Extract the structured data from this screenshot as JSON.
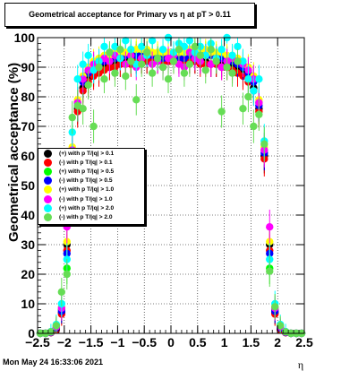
{
  "canvas": {
    "title": "Geometrical acceptance for Primary vs   η at pT > 0.11",
    "timestamp": "Mon May 24 16:33:06 2021"
  },
  "chart_data": {
    "type": "scatter",
    "title": "Geometrical acceptance for Primary vs   η at pT > 0.11",
    "xlabel": "η",
    "ylabel": "Geometrical acceptance (%)",
    "xlim": [
      -2.5,
      2.5
    ],
    "ylim": [
      0,
      100
    ],
    "x_ticks": [
      "−2.5",
      "−2",
      "−1.5",
      "−1",
      "−0.5",
      "0",
      "0.5",
      "1",
      "1.5",
      "2",
      "2.5"
    ],
    "y_ticks": [
      "0",
      "10",
      "20",
      "30",
      "40",
      "50",
      "60",
      "70",
      "80",
      "90",
      "100"
    ],
    "grid": true,
    "legend_position": "middle-left",
    "series": [
      {
        "name": "(+) with p T/|q| > 0.1",
        "color": "#000000",
        "x": [
          -2.45,
          -2.35,
          -2.25,
          -2.15,
          -2.05,
          -1.95,
          -1.85,
          -1.75,
          -1.65,
          -1.55,
          -1.45,
          -1.35,
          -1.25,
          -1.15,
          -1.05,
          -0.95,
          -0.85,
          -0.75,
          -0.65,
          -0.55,
          -0.45,
          -0.35,
          -0.25,
          -0.15,
          -0.05,
          0.05,
          0.15,
          0.25,
          0.35,
          0.45,
          0.55,
          0.65,
          0.75,
          0.85,
          0.95,
          1.05,
          1.15,
          1.25,
          1.35,
          1.45,
          1.55,
          1.65,
          1.75,
          1.85,
          1.95,
          2.05,
          2.15,
          2.25,
          2.35,
          2.45
        ],
        "y": [
          0,
          0,
          0.3,
          1.5,
          7,
          30,
          60,
          76,
          83,
          86,
          88,
          89,
          90,
          90,
          91,
          91,
          92,
          92,
          92,
          92,
          92,
          92,
          92,
          92,
          92,
          92,
          92,
          92,
          92,
          92,
          92,
          92,
          91,
          91,
          91,
          90,
          90,
          89,
          88,
          86,
          83,
          76,
          60,
          30,
          7,
          1.5,
          0.3,
          0,
          0,
          0
        ]
      },
      {
        "name": "(-) with p T/|q| > 0.1",
        "color": "#ff0000",
        "x": [
          -2.45,
          -2.35,
          -2.25,
          -2.15,
          -2.05,
          -1.95,
          -1.85,
          -1.75,
          -1.65,
          -1.55,
          -1.45,
          -1.35,
          -1.25,
          -1.15,
          -1.05,
          -0.95,
          -0.85,
          -0.75,
          -0.65,
          -0.55,
          -0.45,
          -0.35,
          -0.25,
          -0.15,
          -0.05,
          0.05,
          0.15,
          0.25,
          0.35,
          0.45,
          0.55,
          0.65,
          0.75,
          0.85,
          0.95,
          1.05,
          1.15,
          1.25,
          1.35,
          1.45,
          1.55,
          1.65,
          1.75,
          1.85,
          1.95,
          2.05,
          2.15,
          2.25,
          2.35,
          2.45
        ],
        "y": [
          0,
          0,
          0.2,
          1.2,
          6.5,
          28,
          59,
          75,
          82,
          85,
          87,
          88,
          89,
          90,
          90,
          91,
          91,
          91,
          92,
          92,
          92,
          92,
          92,
          92,
          92,
          92,
          92,
          92,
          92,
          92,
          91,
          91,
          91,
          91,
          90,
          90,
          89,
          88,
          87,
          85,
          82,
          75,
          59,
          28,
          6.5,
          1.2,
          0.2,
          0,
          0,
          0
        ]
      },
      {
        "name": "(+) with p T/|q| > 0.5",
        "color": "#00ff00",
        "x": [
          -2.45,
          -2.35,
          -2.25,
          -2.15,
          -2.05,
          -1.95,
          -1.85,
          -1.75,
          -1.65,
          -1.55,
          -1.45,
          -1.35,
          -1.25,
          -1.15,
          -1.05,
          -0.95,
          -0.85,
          -0.75,
          -0.65,
          -0.55,
          -0.45,
          -0.35,
          -0.25,
          -0.15,
          -0.05,
          0.05,
          0.15,
          0.25,
          0.35,
          0.45,
          0.55,
          0.65,
          0.75,
          0.85,
          0.95,
          1.05,
          1.15,
          1.25,
          1.35,
          1.45,
          1.55,
          1.65,
          1.75,
          1.85,
          1.95,
          2.05,
          2.15,
          2.25,
          2.35,
          2.45
        ],
        "y": [
          0,
          0,
          0.4,
          2,
          8,
          22,
          62,
          78,
          86,
          89,
          91,
          92,
          93,
          93,
          94,
          94,
          94,
          95,
          95,
          95,
          95,
          94,
          94,
          94,
          94,
          94,
          94,
          94,
          95,
          95,
          95,
          95,
          94,
          94,
          94,
          93,
          93,
          92,
          91,
          89,
          86,
          78,
          62,
          22,
          8,
          2,
          0.4,
          0,
          0,
          0
        ]
      },
      {
        "name": "(-) with p T/|q| > 0.5",
        "color": "#0000ff",
        "x": [
          -2.45,
          -2.35,
          -2.25,
          -2.15,
          -2.05,
          -1.95,
          -1.85,
          -1.75,
          -1.65,
          -1.55,
          -1.45,
          -1.35,
          -1.25,
          -1.15,
          -1.05,
          -0.95,
          -0.85,
          -0.75,
          -0.65,
          -0.55,
          -0.45,
          -0.35,
          -0.25,
          -0.15,
          -0.05,
          0.05,
          0.15,
          0.25,
          0.35,
          0.45,
          0.55,
          0.65,
          0.75,
          0.85,
          0.95,
          1.05,
          1.15,
          1.25,
          1.35,
          1.45,
          1.55,
          1.65,
          1.75,
          1.85,
          1.95,
          2.05,
          2.15,
          2.25,
          2.35,
          2.45
        ],
        "y": [
          0,
          0,
          0.3,
          1.8,
          7.5,
          27,
          61,
          77,
          85,
          88,
          90,
          91,
          92,
          93,
          93,
          94,
          94,
          94,
          94,
          94,
          94,
          94,
          93,
          93,
          93,
          93,
          93,
          93,
          94,
          94,
          94,
          94,
          94,
          93,
          93,
          93,
          92,
          91,
          90,
          88,
          85,
          77,
          61,
          27,
          7.5,
          1.8,
          0.3,
          0,
          0,
          0
        ]
      },
      {
        "name": "(+) with p T/|q| > 1.0",
        "color": "#ffff00",
        "x": [
          -2.45,
          -2.35,
          -2.25,
          -2.15,
          -2.05,
          -1.95,
          -1.85,
          -1.75,
          -1.65,
          -1.55,
          -1.45,
          -1.35,
          -1.25,
          -1.15,
          -1.05,
          -0.95,
          -0.85,
          -0.75,
          -0.65,
          -0.55,
          -0.45,
          -0.35,
          -0.25,
          -0.15,
          -0.05,
          0.05,
          0.15,
          0.25,
          0.35,
          0.45,
          0.55,
          0.65,
          0.75,
          0.85,
          0.95,
          1.05,
          1.15,
          1.25,
          1.35,
          1.45,
          1.55,
          1.65,
          1.75,
          1.85,
          1.95,
          2.05,
          2.15,
          2.25,
          2.35,
          2.45
        ],
        "y": [
          0,
          0,
          0.5,
          2.5,
          9,
          31,
          63,
          79,
          87,
          90,
          92,
          93,
          94,
          94,
          95,
          95,
          95,
          96,
          96,
          96,
          96,
          95,
          95,
          95,
          95,
          95,
          95,
          95,
          96,
          96,
          96,
          96,
          95,
          95,
          95,
          94,
          94,
          93,
          92,
          90,
          87,
          79,
          63,
          31,
          9,
          2.5,
          0.5,
          0,
          0,
          0
        ]
      },
      {
        "name": "(-) with p T/|q| > 1.0",
        "color": "#ff00ff",
        "x": [
          -2.45,
          -2.35,
          -2.25,
          -2.15,
          -2.05,
          -1.95,
          -1.85,
          -1.75,
          -1.65,
          -1.55,
          -1.45,
          -1.35,
          -1.25,
          -1.15,
          -1.05,
          -0.95,
          -0.85,
          -0.75,
          -0.65,
          -0.55,
          -0.45,
          -0.35,
          -0.25,
          -0.15,
          -0.05,
          0.05,
          0.15,
          0.25,
          0.35,
          0.45,
          0.55,
          0.65,
          0.75,
          0.85,
          0.95,
          1.05,
          1.15,
          1.25,
          1.35,
          1.45,
          1.55,
          1.65,
          1.75,
          1.85,
          1.95,
          2.05,
          2.15,
          2.25,
          2.35,
          2.45
        ],
        "y": [
          0,
          0,
          0.4,
          2.2,
          8.5,
          36,
          62,
          78,
          86,
          89,
          91,
          92,
          93,
          92,
          94,
          93,
          91,
          94,
          90,
          93,
          95,
          91,
          92,
          90,
          93,
          94,
          91,
          90,
          95,
          93,
          92,
          94,
          91,
          93,
          90,
          92,
          93,
          92,
          91,
          89,
          86,
          78,
          62,
          36,
          8.5,
          2.2,
          0.4,
          0,
          0,
          0
        ]
      },
      {
        "name": "(+) with p T/|q| > 2.0",
        "color": "#00ffff",
        "x": [
          -2.45,
          -2.35,
          -2.25,
          -2.15,
          -2.05,
          -1.95,
          -1.85,
          -1.75,
          -1.65,
          -1.55,
          -1.45,
          -1.35,
          -1.25,
          -1.15,
          -1.05,
          -0.95,
          -0.85,
          -0.75,
          -0.65,
          -0.55,
          -0.45,
          -0.35,
          -0.25,
          -0.15,
          -0.05,
          0.05,
          0.15,
          0.25,
          0.35,
          0.45,
          0.55,
          0.65,
          0.75,
          0.85,
          0.95,
          1.05,
          1.15,
          1.25,
          1.35,
          1.45,
          1.55,
          1.65,
          1.75,
          1.85,
          1.95,
          2.05,
          2.15,
          2.25,
          2.35,
          2.45
        ],
        "y": [
          0,
          0,
          0.6,
          3,
          10,
          25,
          68,
          86,
          91,
          94,
          89,
          92,
          97,
          95,
          97,
          93,
          99,
          96,
          91,
          97,
          94,
          99,
          93,
          96,
          100,
          95,
          98,
          97,
          99,
          95,
          97,
          94,
          98,
          93,
          96,
          100,
          94,
          97,
          92,
          86,
          82,
          86,
          65,
          25,
          10,
          3,
          0.6,
          0,
          0,
          0
        ]
      },
      {
        "name": "(-) with p T/|q| > 2.0",
        "color": "#66dd55",
        "x": [
          -2.45,
          -2.35,
          -2.25,
          -2.15,
          -2.05,
          -1.95,
          -1.85,
          -1.75,
          -1.65,
          -1.55,
          -1.45,
          -1.35,
          -1.25,
          -1.15,
          -1.05,
          -0.95,
          -0.85,
          -0.75,
          -0.65,
          -0.55,
          -0.45,
          -0.35,
          -0.25,
          -0.15,
          -0.05,
          0.05,
          0.15,
          0.25,
          0.35,
          0.45,
          0.55,
          0.65,
          0.75,
          0.85,
          0.95,
          1.05,
          1.15,
          1.25,
          1.35,
          1.45,
          1.55,
          1.65,
          1.75,
          1.85,
          1.95,
          2.05,
          2.15,
          2.25,
          2.35,
          2.45
        ],
        "y": [
          0,
          0,
          0.5,
          2.6,
          14,
          20,
          73,
          77,
          76,
          84,
          70,
          90,
          86,
          95,
          88,
          96,
          87,
          92,
          79,
          91,
          95,
          88,
          93,
          90,
          86,
          92,
          96,
          88,
          91,
          97,
          94,
          89,
          96,
          92,
          75,
          90,
          88,
          92,
          76,
          80,
          70,
          74,
          64,
          21,
          9,
          2.6,
          0.5,
          0,
          0,
          0
        ]
      }
    ]
  }
}
